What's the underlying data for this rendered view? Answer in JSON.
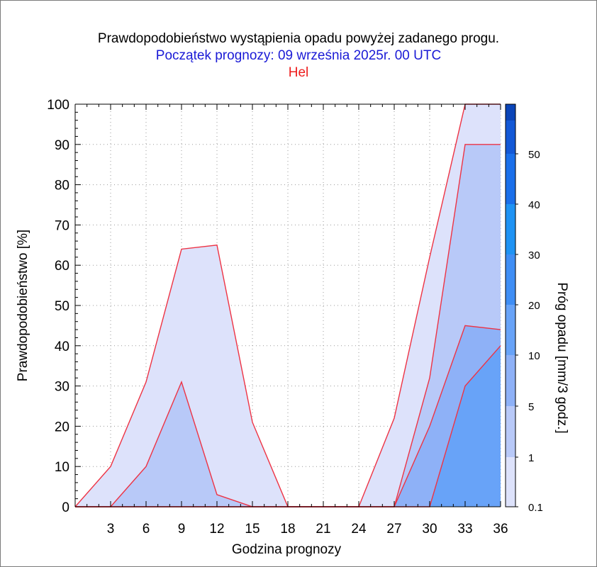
{
  "title": "Prawdopodobieństwo wystąpienia opadu powyżej zadanego progu.",
  "subtitle": "Początek prognozy: 09 września 2025r. 00 UTC",
  "location": "Hel",
  "colors": {
    "title": "#000000",
    "subtitle": "#1a1ad6",
    "location": "#ee1c1c",
    "outline": "#ee3344"
  },
  "chart_data": {
    "type": "area",
    "xlabel": "Godzina prognozy",
    "ylabel": "Prawdopodobieństwo [%]",
    "xlim": [
      0,
      36
    ],
    "ylim": [
      0,
      100
    ],
    "x_ticks": [
      3,
      6,
      9,
      12,
      15,
      18,
      21,
      24,
      27,
      30,
      33,
      36
    ],
    "y_ticks": [
      0,
      10,
      20,
      30,
      40,
      50,
      60,
      70,
      80,
      90,
      100
    ],
    "grid": true,
    "x": [
      0,
      3,
      6,
      9,
      12,
      15,
      18,
      21,
      24,
      27,
      30,
      33,
      36
    ],
    "series": [
      {
        "threshold": 0.1,
        "color": "#dde2fb",
        "values": [
          0,
          10,
          31,
          64,
          65,
          21,
          0,
          0,
          0,
          22,
          62,
          100,
          100
        ]
      },
      {
        "threshold": 1,
        "color": "#b8c9f8",
        "values": [
          0,
          0,
          10,
          31,
          3,
          0,
          0,
          0,
          0,
          0,
          32,
          90,
          90
        ]
      },
      {
        "threshold": 5,
        "color": "#8eb1f7",
        "values": [
          0,
          0,
          0,
          0,
          0,
          0,
          0,
          0,
          0,
          0,
          20,
          45,
          44
        ]
      },
      {
        "threshold": 10,
        "color": "#68a3f8",
        "values": [
          0,
          0,
          0,
          0,
          0,
          0,
          0,
          0,
          0,
          0,
          0,
          30,
          40
        ]
      }
    ],
    "colorbar": {
      "label": "Próg opadu [mm/3 godz.]",
      "tick_labels": [
        "0.1",
        "1",
        "5",
        "10",
        "20",
        "30",
        "40",
        "50"
      ],
      "colors": [
        "#dde2fb",
        "#b8c9f8",
        "#8eb1f7",
        "#68a3f8",
        "#3f8ef5",
        "#1f93f4",
        "#1a6fea",
        "#1358d6",
        "#0b45b8"
      ]
    }
  }
}
